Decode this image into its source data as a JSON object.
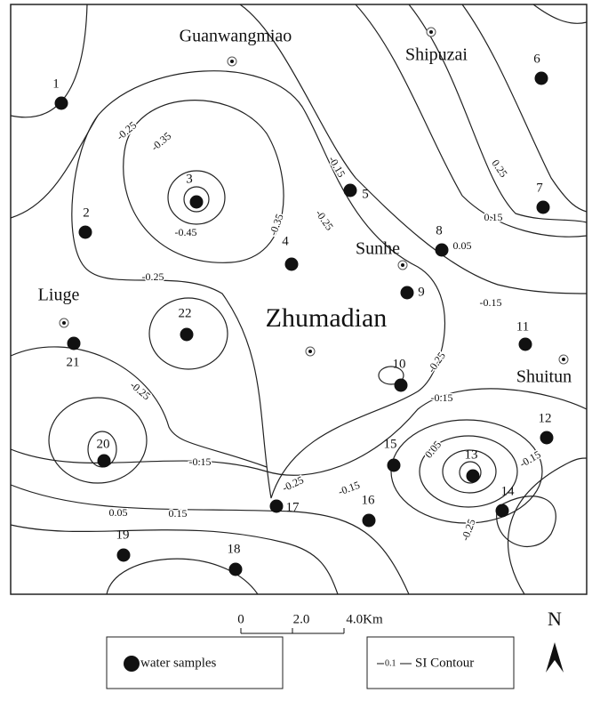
{
  "places": [
    {
      "name": "Guanwangmiao"
    },
    {
      "name": "Shipuzai"
    },
    {
      "name": "Sunhe"
    },
    {
      "name": "Liuge"
    },
    {
      "name": "Zhumadian"
    },
    {
      "name": "Shuitun"
    }
  ],
  "samples": [
    "1",
    "2",
    "3",
    "4",
    "5",
    "6",
    "7",
    "8",
    "9",
    "10",
    "11",
    "12",
    "13",
    "14",
    "15",
    "16",
    "17",
    "18",
    "19",
    "20",
    "21",
    "22"
  ],
  "contour_labels": [
    "-0.25",
    "-0.35",
    "-0.45",
    "-0.35",
    "-0.15",
    "-0.25",
    "0.25",
    "0.15",
    "0.05",
    "-0.15",
    "-0.25",
    "-0.25",
    "-0.25",
    "-0.15",
    "-0.15",
    "-0.25",
    "-0.15",
    "0.05",
    "-0.15",
    "0.05",
    "0.15",
    "-0.25"
  ],
  "scale": {
    "labels": [
      "0",
      "2.0",
      "4.0Km"
    ]
  },
  "north": "N",
  "legend": {
    "samples": "water samples",
    "contour_value": "0.1",
    "contour": "SI Contour"
  }
}
